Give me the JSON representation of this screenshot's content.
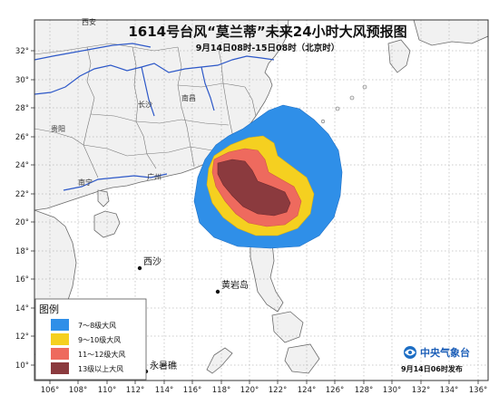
{
  "title": "1614号台风“莫兰蒂”未来24小时大风预报图",
  "subtitle": "9月14日08时-15日08时（北京时）",
  "lat_labels": [
    "32°",
    "30°",
    "28°",
    "26°",
    "24°",
    "22°",
    "20°",
    "18°",
    "16°",
    "14°",
    "12°",
    "10°"
  ],
  "lon_labels": [
    "106°",
    "108°",
    "110°",
    "112°",
    "114°",
    "116°",
    "118°",
    "120°",
    "122°",
    "124°",
    "126°",
    "128°",
    "130°",
    "132°",
    "134°",
    "136°"
  ],
  "places": [
    {
      "name": "西安"
    },
    {
      "name": "南昌"
    },
    {
      "name": "长沙"
    },
    {
      "name": "贵阳"
    },
    {
      "name": "南宁"
    },
    {
      "name": "广州"
    },
    {
      "name": "西沙"
    },
    {
      "name": "黄岩岛"
    },
    {
      "name": "永暑礁"
    }
  ],
  "legend": {
    "title": "图例",
    "items": [
      {
        "label": "7～8级大风",
        "color": "#2f8fe8"
      },
      {
        "label": "9～10级大风",
        "color": "#f5d020"
      },
      {
        "label": "11～12级大风",
        "color": "#ee6a5e"
      },
      {
        "label": "13级以上大风",
        "color": "#8b3a3e"
      }
    ]
  },
  "agency": {
    "name": "中央气象台",
    "issued": "9月14日06时发布"
  },
  "colors": {
    "land": "#f1f1f1",
    "sea": "#ffffff",
    "river": "#2d58c8",
    "border": "#555555"
  }
}
